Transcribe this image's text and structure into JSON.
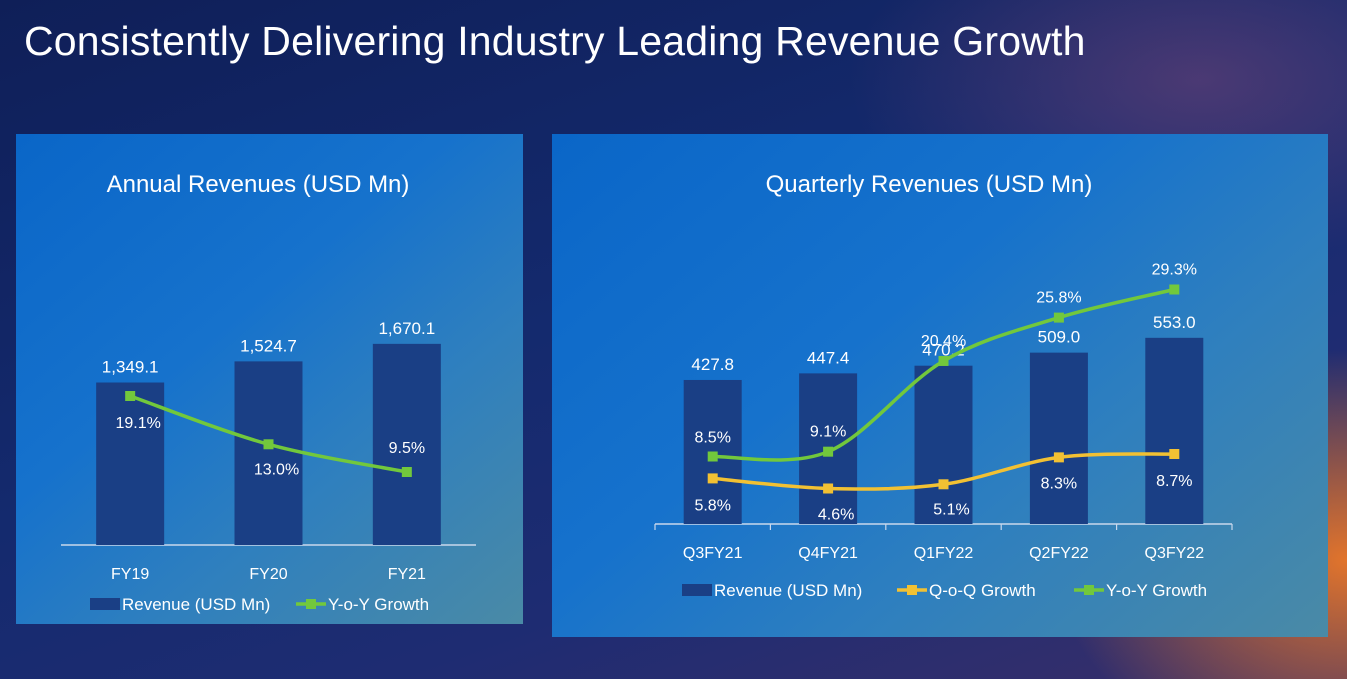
{
  "page": {
    "title": "Consistently Delivering Industry Leading Revenue Growth"
  },
  "colors": {
    "bar": "#1a3f85",
    "yoy_line": "#72c83c",
    "qoq_line": "#f2c133",
    "axis": "#c9d8ec",
    "text": "#ffffff"
  },
  "chart_data": [
    {
      "type": "bar",
      "title": "Annual Revenues (USD Mn)",
      "categories": [
        "FY19",
        "FY20",
        "FY21"
      ],
      "ylim": [
        0,
        2300
      ],
      "series": [
        {
          "name": "Revenue (USD Mn)",
          "type": "bar",
          "values": [
            1349.1,
            1524.7,
            1670.1
          ],
          "labels": [
            "1,349.1",
            "1,524.7",
            "1,670.1"
          ]
        },
        {
          "name": "Y-o-Y Growth",
          "type": "line",
          "values": [
            19.1,
            13.0,
            9.5
          ],
          "labels": [
            "19.1%",
            "13.0%",
            "9.5%"
          ]
        }
      ],
      "legend": {
        "placement": "bottom",
        "entries": [
          "Revenue (USD Mn)",
          "Y-o-Y Growth"
        ]
      }
    },
    {
      "type": "bar",
      "title": "Quarterly Revenues (USD Mn)",
      "categories": [
        "Q3FY21",
        "Q4FY21",
        "Q1FY22",
        "Q2FY22",
        "Q3FY22"
      ],
      "ylim": [
        0,
        600
      ],
      "series": [
        {
          "name": "Revenue (USD Mn)",
          "type": "bar",
          "values": [
            427.8,
            447.4,
            470.2,
            509.0,
            553.0
          ],
          "labels": [
            "427.8",
            "447.4",
            "470.2",
            "509.0",
            "553.0"
          ]
        },
        {
          "name": "Q-o-Q Growth",
          "type": "line",
          "values": [
            5.8,
            4.6,
            5.1,
            8.3,
            8.7
          ],
          "labels": [
            "5.8%",
            "4.6%",
            "5.1%",
            "8.3%",
            "8.7%"
          ]
        },
        {
          "name": "Y-o-Y Growth",
          "type": "line",
          "values": [
            8.5,
            9.1,
            20.4,
            25.8,
            29.3
          ],
          "labels": [
            "8.5%",
            "9.1%",
            "20.4%",
            "25.8%",
            "29.3%"
          ]
        }
      ],
      "legend": {
        "placement": "bottom",
        "entries": [
          "Revenue (USD Mn)",
          "Q-o-Q Growth",
          "Y-o-Y Growth"
        ]
      }
    }
  ]
}
